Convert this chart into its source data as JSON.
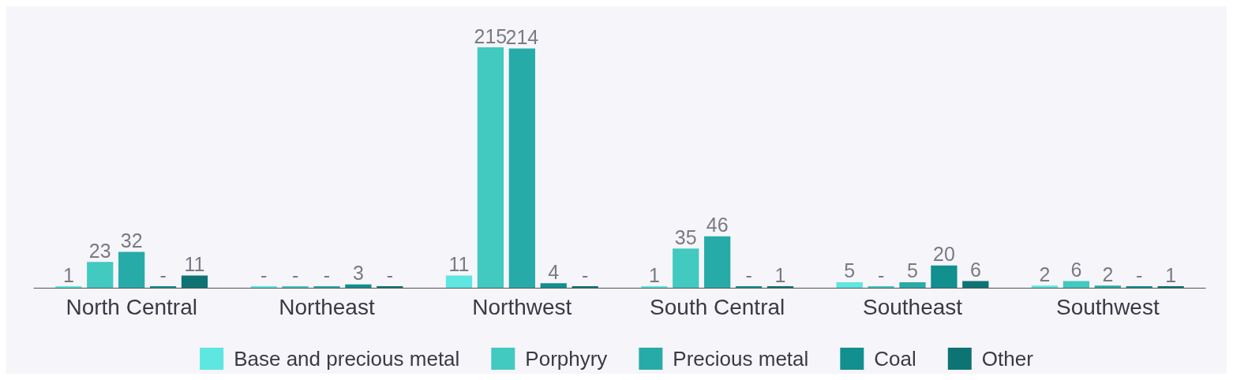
{
  "chart_data": {
    "type": "bar",
    "categories": [
      "North Central",
      "Northeast",
      "Northwest",
      "South Central",
      "Southeast",
      "Southwest"
    ],
    "series": [
      {
        "name": "Base and precious metal",
        "color": "#5ee6e0",
        "values": [
          1,
          0,
          11,
          1,
          5,
          2
        ],
        "value_labels": [
          "1",
          "-",
          "11",
          "1",
          "5",
          "2"
        ]
      },
      {
        "name": "Porphyry",
        "color": "#42c9c0",
        "values": [
          23,
          0,
          215,
          35,
          0,
          6
        ],
        "value_labels": [
          "23",
          "-",
          "215",
          "35",
          "-",
          "6"
        ]
      },
      {
        "name": "Precious metal",
        "color": "#27aba8",
        "values": [
          32,
          0,
          214,
          46,
          5,
          2
        ],
        "value_labels": [
          "32",
          "-",
          "214",
          "46",
          "5",
          "2"
        ]
      },
      {
        "name": "Coal",
        "color": "#128f8f",
        "values": [
          0,
          3,
          4,
          0,
          20,
          0
        ],
        "value_labels": [
          "-",
          "3",
          "4",
          "-",
          "20",
          "-"
        ]
      },
      {
        "name": "Other",
        "color": "#0e7373",
        "values": [
          11,
          0,
          0,
          1,
          6,
          1
        ],
        "value_labels": [
          "11",
          "-",
          "-",
          "1",
          "6",
          "1"
        ]
      }
    ],
    "legend": "bottom"
  }
}
